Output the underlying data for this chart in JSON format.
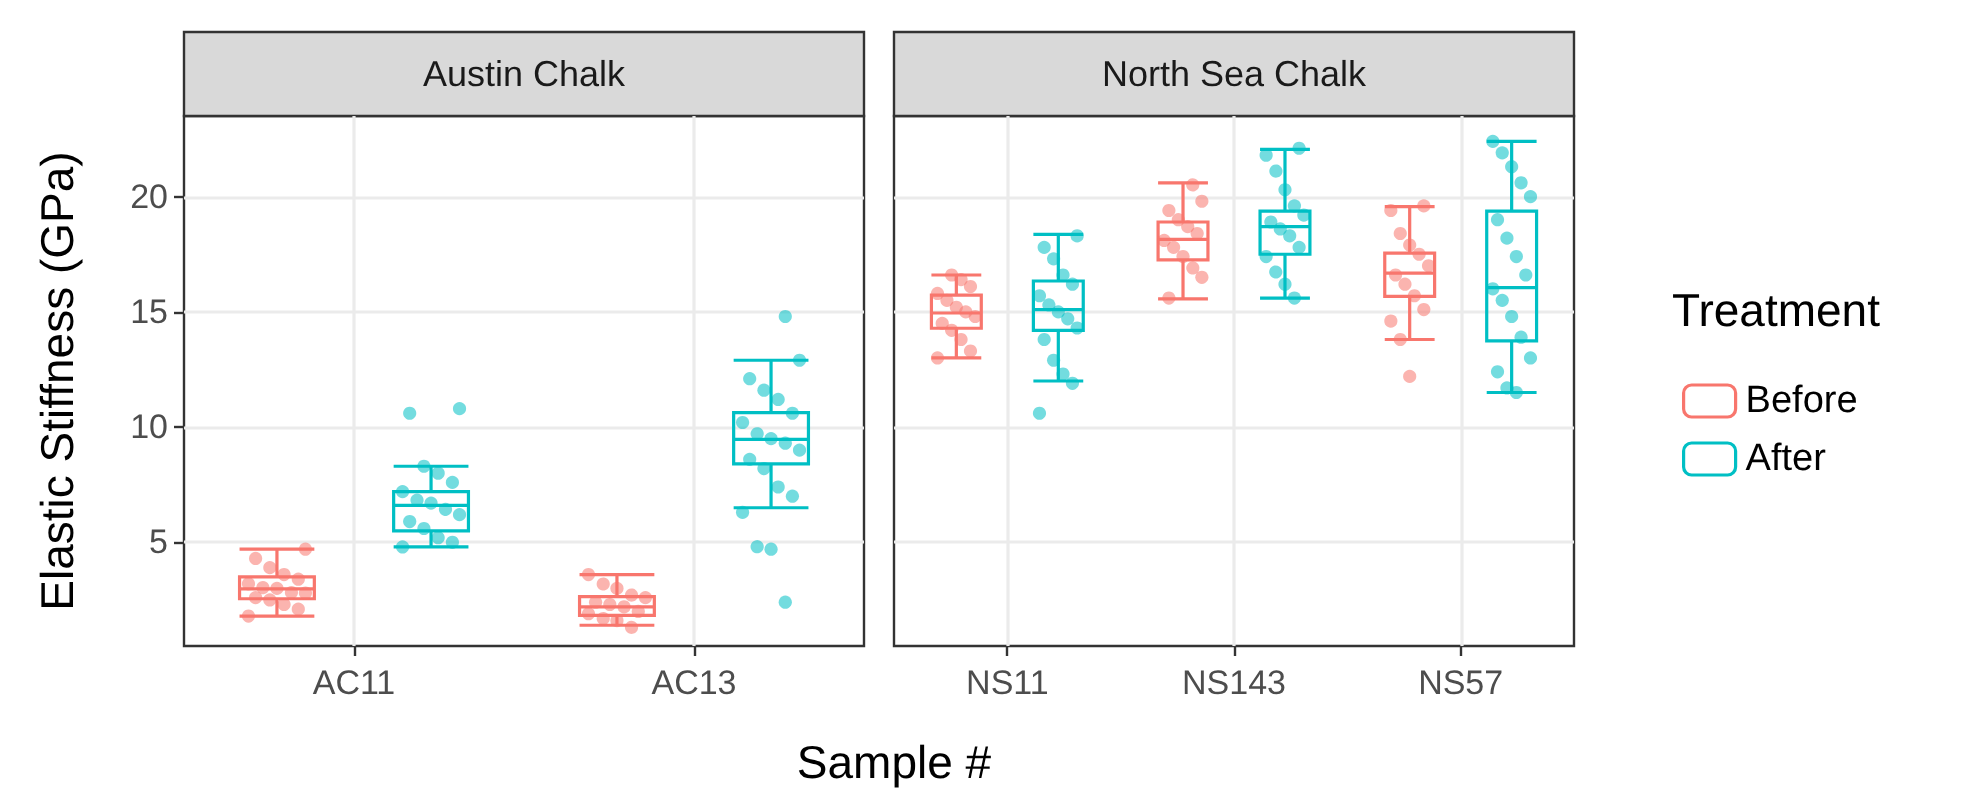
{
  "chart_data": [
    {
      "type": "box",
      "title": "Austin Chalk",
      "xlabel": "Sample #",
      "ylabel": "Elastic Stiffness (GPa)",
      "categories": [
        "AC11",
        "AC13"
      ],
      "ylim": [
        0.5,
        23.5
      ],
      "yticks": [
        5,
        10,
        15,
        20
      ],
      "grid": true,
      "series": [
        {
          "color": "#f8766d",
          "boxes": [
            {
              "low": 1.8,
              "q1": 2.55,
              "median": 2.98,
              "q3": 3.5,
              "high": 4.7
            },
            {
              "low": 1.4,
              "q1": 1.83,
              "median": 2.2,
              "q3": 2.64,
              "high": 3.6
            }
          ]
        },
        {
          "color": "#00bfc4",
          "boxes": [
            {
              "low": 4.8,
              "q1": 5.5,
              "median": 6.6,
              "q3": 7.2,
              "high": 8.3
            },
            {
              "low": 6.5,
              "q1": 8.4,
              "median": 9.47,
              "q3": 10.63,
              "high": 12.9
            }
          ]
        },
        {
          "type": "scatter",
          "color": "#f8766d",
          "x": [
            "AC11",
            "AC11",
            "AC11",
            "AC11",
            "AC11",
            "AC11",
            "AC11",
            "AC11",
            "AC11",
            "AC11",
            "AC11",
            "AC11",
            "AC11",
            "AC11",
            "AC11",
            "AC13",
            "AC13",
            "AC13",
            "AC13",
            "AC13",
            "AC13",
            "AC13",
            "AC13",
            "AC13",
            "AC13",
            "AC13",
            "AC13",
            "AC13"
          ],
          "values": [
            1.8,
            2.1,
            2.3,
            2.5,
            2.6,
            2.8,
            2.9,
            3.0,
            3.1,
            3.2,
            3.4,
            3.6,
            3.9,
            4.3,
            4.7,
            1.4,
            1.6,
            1.8,
            1.9,
            2.0,
            2.2,
            2.3,
            2.4,
            2.6,
            2.8,
            3.0,
            3.3,
            3.6
          ]
        },
        {
          "type": "scatter",
          "color": "#00bfc4",
          "x": [
            "AC11",
            "AC11",
            "AC11",
            "AC11",
            "AC11",
            "AC11",
            "AC11",
            "AC11",
            "AC11",
            "AC11",
            "AC11",
            "AC11",
            "AC11",
            "AC11",
            "AC11",
            "AC13",
            "AC13",
            "AC13",
            "AC13",
            "AC13",
            "AC13",
            "AC13",
            "AC13",
            "AC13",
            "AC13",
            "AC13",
            "AC13",
            "AC13",
            "AC13",
            "AC13",
            "AC13",
            "AC13",
            "AC13",
            "AC13"
          ],
          "values": [
            4.8,
            5.0,
            5.2,
            5.6,
            5.9,
            6.2,
            6.5,
            6.7,
            6.9,
            7.2,
            7.6,
            8.0,
            8.3,
            10.6,
            10.8,
            2.4,
            4.7,
            4.9,
            6.3,
            7.0,
            7.4,
            8.2,
            8.6,
            9.0,
            9.3,
            9.5,
            9.8,
            10.2,
            10.6,
            11.2,
            11.6,
            12.1,
            12.9,
            14.8
          ]
        }
      ]
    },
    {
      "type": "box",
      "title": "North Sea Chalk",
      "categories": [
        "NS11",
        "NS143",
        "NS57"
      ],
      "ylim": [
        0.5,
        23.5
      ],
      "yticks": [
        5,
        10,
        15,
        20
      ],
      "grid": true,
      "tick_labels": "x",
      "legend": "right",
      "legend_title": "Treatment",
      "series": [
        {
          "name": "Before",
          "color": "#f8766d",
          "boxes": [
            {
              "low": 13.0,
              "q1": 14.29,
              "median": 14.95,
              "q3": 15.73,
              "high": 16.6
            },
            {
              "low": 15.56,
              "q1": 17.26,
              "median": 18.15,
              "q3": 18.9,
              "high": 20.6
            },
            {
              "low": 13.8,
              "q1": 15.67,
              "median": 16.68,
              "q3": 17.55,
              "high": 19.57
            }
          ]
        },
        {
          "name": "After",
          "color": "#00bfc4",
          "boxes": [
            {
              "low": 12.0,
              "q1": 14.2,
              "median": 15.1,
              "q3": 16.34,
              "high": 18.36
            },
            {
              "low": 15.6,
              "q1": 17.5,
              "median": 18.7,
              "q3": 19.37,
              "high": 22.05
            },
            {
              "low": 11.5,
              "q1": 13.74,
              "median": 16.05,
              "q3": 19.37,
              "high": 22.4
            }
          ]
        },
        {
          "type": "scatter",
          "color": "#f8766d",
          "x": [
            "NS11",
            "NS11",
            "NS11",
            "NS11",
            "NS11",
            "NS11",
            "NS11",
            "NS11",
            "NS11",
            "NS11",
            "NS11",
            "NS11",
            "NS11",
            "NS143",
            "NS143",
            "NS143",
            "NS143",
            "NS143",
            "NS143",
            "NS143",
            "NS143",
            "NS143",
            "NS143",
            "NS143",
            "NS143",
            "NS57",
            "NS57",
            "NS57",
            "NS57",
            "NS57",
            "NS57",
            "NS57",
            "NS57",
            "NS57",
            "NS57",
            "NS57",
            "NS57",
            "NS57"
          ],
          "values": [
            13.0,
            13.3,
            13.8,
            14.2,
            14.5,
            14.8,
            15.0,
            15.2,
            15.5,
            15.8,
            16.1,
            16.4,
            16.6,
            15.6,
            16.5,
            17.0,
            17.4,
            17.8,
            18.1,
            18.4,
            18.7,
            19.0,
            19.4,
            19.8,
            20.6,
            12.2,
            13.8,
            14.6,
            15.1,
            15.7,
            16.2,
            16.6,
            17.0,
            17.5,
            17.9,
            18.4,
            19.4,
            19.6
          ]
        },
        {
          "type": "scatter",
          "color": "#00bfc4",
          "x": [
            "NS11",
            "NS11",
            "NS11",
            "NS11",
            "NS11",
            "NS11",
            "NS11",
            "NS11",
            "NS11",
            "NS11",
            "NS11",
            "NS11",
            "NS11",
            "NS11",
            "NS11",
            "NS143",
            "NS143",
            "NS143",
            "NS143",
            "NS143",
            "NS143",
            "NS143",
            "NS143",
            "NS143",
            "NS143",
            "NS143",
            "NS143",
            "NS143",
            "NS143",
            "NS57",
            "NS57",
            "NS57",
            "NS57",
            "NS57",
            "NS57",
            "NS57",
            "NS57",
            "NS57",
            "NS57",
            "NS57",
            "NS57",
            "NS57",
            "NS57",
            "NS57",
            "NS57",
            "NS57"
          ],
          "values": [
            10.6,
            11.9,
            12.3,
            12.9,
            13.8,
            14.3,
            14.7,
            15.0,
            15.3,
            15.7,
            16.2,
            16.6,
            17.3,
            17.8,
            18.3,
            15.6,
            16.2,
            16.8,
            17.4,
            17.8,
            18.3,
            18.6,
            18.9,
            19.2,
            19.6,
            20.3,
            21.2,
            21.8,
            22.1,
            11.5,
            11.7,
            12.4,
            13.0,
            13.9,
            14.8,
            15.5,
            16.0,
            16.6,
            17.4,
            18.2,
            19.0,
            20.0,
            20.6,
            21.3,
            21.9,
            22.4
          ]
        }
      ]
    }
  ]
}
